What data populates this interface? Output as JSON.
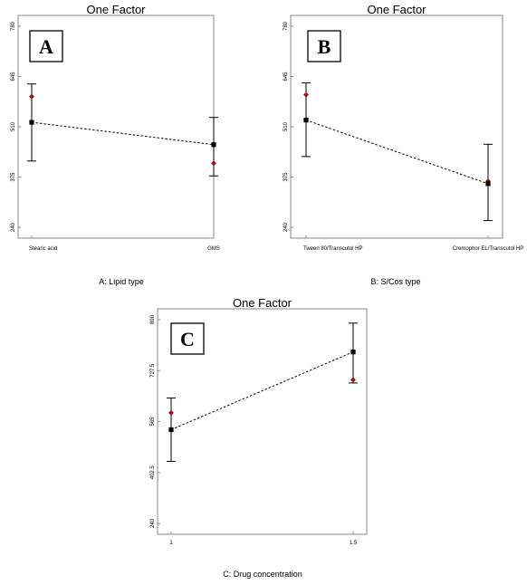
{
  "chart_data": [
    {
      "panel": "A",
      "type": "line",
      "title": "One Factor",
      "xlabel": "A: Lipid type",
      "ylabel": "",
      "categories": [
        "Stearic acid",
        "GMS"
      ],
      "ylim": [
        240,
        780
      ],
      "yticks": [
        "780",
        "645",
        "510",
        "375",
        "240"
      ],
      "series": [
        {
          "name": "",
          "kind": "predicted-mean",
          "values": [
            522,
            462
          ]
        },
        {
          "name": "",
          "kind": "actual-point",
          "values": [
            591,
            412
          ]
        }
      ],
      "error_bars": [
        [
          418,
          625
        ],
        [
          378,
          535
        ]
      ]
    },
    {
      "panel": "B",
      "type": "line",
      "title": "One Factor",
      "xlabel": "B: S/Cos type",
      "ylabel": "",
      "categories": [
        "Tween 80/Transcutol HP",
        "Cremophor EL/Transcutol HP"
      ],
      "ylim": [
        240,
        780
      ],
      "yticks": [
        "780",
        "645",
        "510",
        "375",
        "240"
      ],
      "series": [
        {
          "name": "",
          "kind": "predicted-mean",
          "values": [
            528,
            357
          ]
        },
        {
          "name": "",
          "kind": "actual-point",
          "values": [
            596,
            364
          ]
        }
      ],
      "error_bars": [
        [
          430,
          628
        ],
        [
          258,
          463
        ]
      ]
    },
    {
      "panel": "C",
      "type": "line",
      "title": "One Factor",
      "xlabel": "C: Drug concentration",
      "ylabel": "",
      "categories": [
        "1",
        "1.5"
      ],
      "ylim": [
        240,
        890
      ],
      "yticks": [
        "890",
        "727.5",
        "565",
        "402.5",
        "240"
      ],
      "series": [
        {
          "name": "",
          "kind": "predicted-mean",
          "values": [
            539,
            787
          ]
        },
        {
          "name": "",
          "kind": "actual-point",
          "values": [
            593,
            698
          ]
        }
      ],
      "error_bars": [
        [
          438,
          640
        ],
        [
          688,
          879
        ]
      ]
    }
  ],
  "colors": {
    "mean_marker": "#000000",
    "actual_marker": "#c00000",
    "connector": "#000000",
    "frame": "#888888"
  }
}
